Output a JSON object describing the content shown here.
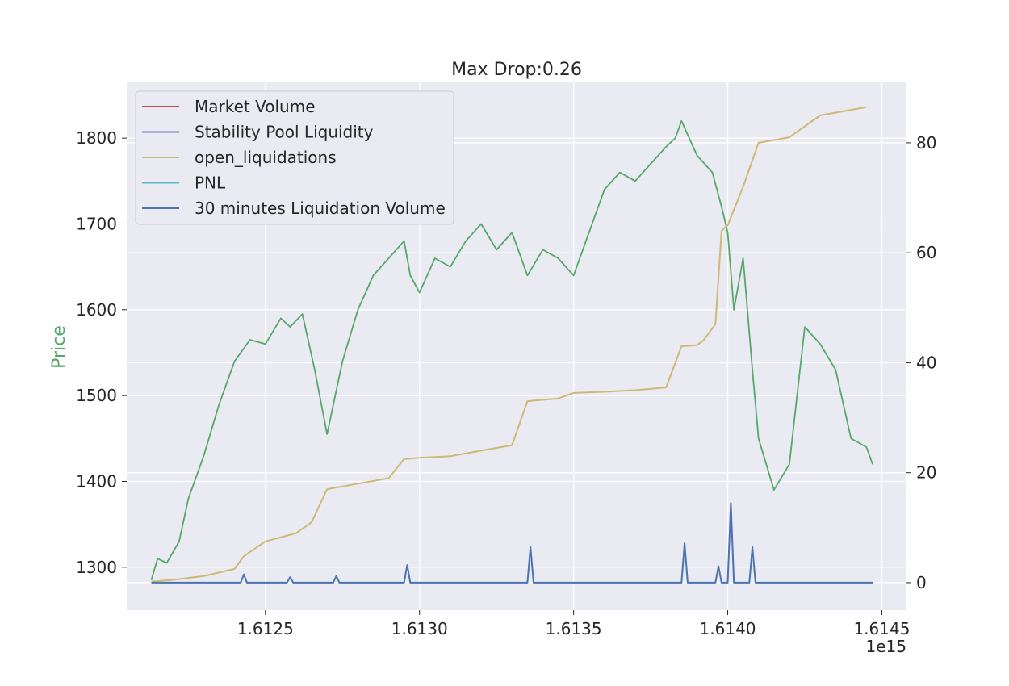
{
  "chart_data": {
    "type": "line",
    "title": "Max Drop:0.26",
    "ylabel": "Price",
    "y2label": "",
    "x_offset_label": "1e15",
    "x_tick_labels": [
      "1.6125",
      "1.6130",
      "1.6135",
      "1.6140",
      "1.6145"
    ],
    "x_ticks": [
      1.6125,
      1.613,
      1.6135,
      1.614,
      1.6145
    ],
    "xlim": [
      1.61205,
      1.61458
    ],
    "y_tick_labels": [
      "1300",
      "1400",
      "1500",
      "1600",
      "1700",
      "1800"
    ],
    "y_ticks": [
      1300,
      1400,
      1500,
      1600,
      1700,
      1800
    ],
    "ylim": [
      1250,
      1865
    ],
    "y2_tick_labels": [
      "0",
      "20",
      "40",
      "60",
      "80"
    ],
    "y2_ticks": [
      0,
      20,
      40,
      60,
      80
    ],
    "y2lim": [
      -5,
      91
    ],
    "grid": true,
    "legend_position": "top-left",
    "legend": [
      {
        "name": "Market Volume",
        "color": "#c44e52"
      },
      {
        "name": "Stability Pool Liquidity",
        "color": "#8172b3"
      },
      {
        "name": "open_liquidations",
        "color": "#ccb974"
      },
      {
        "name": "PNL",
        "color": "#64b5cd"
      },
      {
        "name": "30 minutes Liquidation Volume",
        "color": "#4c72b0"
      }
    ],
    "series": [
      {
        "name": "Price",
        "axis": "left",
        "color": "#55a868",
        "x": [
          1.61213,
          1.61215,
          1.61218,
          1.61222,
          1.61225,
          1.6123,
          1.61235,
          1.6124,
          1.61245,
          1.6125,
          1.61255,
          1.61258,
          1.61262,
          1.61266,
          1.6127,
          1.61275,
          1.6128,
          1.61285,
          1.6129,
          1.61295,
          1.61297,
          1.613,
          1.61305,
          1.6131,
          1.61315,
          1.6132,
          1.61325,
          1.6133,
          1.61335,
          1.6134,
          1.61345,
          1.6135,
          1.61355,
          1.6136,
          1.61365,
          1.6137,
          1.61375,
          1.6138,
          1.61383,
          1.61385,
          1.6139,
          1.61395,
          1.61398,
          1.614,
          1.61402,
          1.61405,
          1.61408,
          1.6141,
          1.61415,
          1.6142,
          1.61425,
          1.6143,
          1.61435,
          1.6144,
          1.61445,
          1.61447
        ],
        "y": [
          1285,
          1310,
          1305,
          1330,
          1380,
          1430,
          1490,
          1540,
          1565,
          1560,
          1590,
          1580,
          1595,
          1530,
          1455,
          1540,
          1600,
          1640,
          1660,
          1680,
          1640,
          1620,
          1660,
          1650,
          1680,
          1700,
          1670,
          1690,
          1640,
          1670,
          1660,
          1640,
          1690,
          1740,
          1760,
          1750,
          1770,
          1790,
          1800,
          1820,
          1780,
          1760,
          1720,
          1690,
          1600,
          1660,
          1530,
          1450,
          1390,
          1420,
          1580,
          1560,
          1530,
          1450,
          1440,
          1420
        ]
      },
      {
        "name": "open_liquidations",
        "axis": "right",
        "color": "#ccb974",
        "x": [
          1.61213,
          1.6122,
          1.6123,
          1.6124,
          1.61243,
          1.6125,
          1.6126,
          1.61265,
          1.6127,
          1.6128,
          1.6129,
          1.61295,
          1.613,
          1.6131,
          1.6132,
          1.6133,
          1.61335,
          1.61345,
          1.6135,
          1.6136,
          1.6137,
          1.6138,
          1.61385,
          1.6139,
          1.61392,
          1.61396,
          1.61398,
          1.614,
          1.61405,
          1.6141,
          1.61415,
          1.6142,
          1.61425,
          1.6143,
          1.6144,
          1.61445
        ],
        "y": [
          0.2,
          0.5,
          1.2,
          2.5,
          4.8,
          7.5,
          9.0,
          11.0,
          17.0,
          18.0,
          19.0,
          22.5,
          22.7,
          23.0,
          24.0,
          25.0,
          33.0,
          33.5,
          34.5,
          34.7,
          35.0,
          35.5,
          43.0,
          43.2,
          44.0,
          47.0,
          64.0,
          65.0,
          72.0,
          80.0,
          80.5,
          81.0,
          83.0,
          85.0,
          86.0,
          86.5
        ]
      },
      {
        "name": "30 minutes Liquidation Volume",
        "axis": "right",
        "color": "#4c72b0",
        "x": [
          1.61213,
          1.61242,
          1.61243,
          1.61244,
          1.61257,
          1.61258,
          1.61259,
          1.61272,
          1.61273,
          1.61274,
          1.61295,
          1.61296,
          1.61297,
          1.61335,
          1.61336,
          1.61337,
          1.61385,
          1.61386,
          1.61387,
          1.61396,
          1.61397,
          1.61398,
          1.614,
          1.61401,
          1.61402,
          1.61407,
          1.61408,
          1.61409,
          1.61447
        ],
        "y": [
          0,
          0,
          1.5,
          0,
          0,
          1.0,
          0,
          0,
          1.2,
          0,
          0,
          3.2,
          0,
          0,
          6.5,
          0,
          0,
          7.2,
          0,
          0,
          3.0,
          0,
          0,
          14.5,
          0,
          0,
          6.5,
          0,
          0
        ]
      }
    ]
  }
}
